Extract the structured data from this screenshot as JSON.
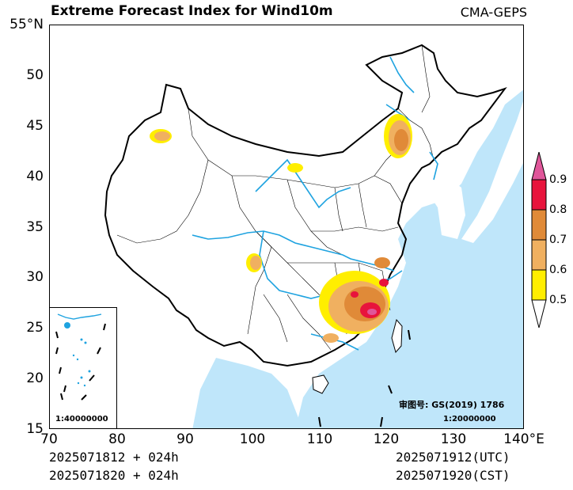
{
  "header": {
    "title": "Extreme Forecast Index for Wind10m",
    "source": "CMA-GEPS"
  },
  "axes": {
    "lat_ticks": [
      "55°N",
      "50",
      "45",
      "40",
      "35",
      "30",
      "25",
      "20",
      "15"
    ],
    "lon_ticks": [
      "70",
      "80",
      "90",
      "100",
      "110",
      "120",
      "130",
      "140°E"
    ],
    "lat_range": [
      15,
      55
    ],
    "lon_range": [
      70,
      140
    ]
  },
  "footer": {
    "init_utc": "2025071812 + 024h",
    "init_cst": "2025071820 + 024h",
    "valid_utc": "2025071912(UTC)",
    "valid_cst": "2025071920(CST)"
  },
  "annotations": {
    "approval_number": "审图号: GS(2019) 1786",
    "main_scale": "1:20000000",
    "inset_scale": "1:40000000"
  },
  "colorbar": {
    "labels": [
      "0.9",
      "0.8",
      "0.7",
      "0.6",
      "0.5"
    ],
    "colors": [
      "#e0569a",
      "#e8143c",
      "#e08a38",
      "#f0b060",
      "#ffee00",
      "#ffffff"
    ]
  },
  "colors": {
    "ocean": "#bfe6fa",
    "rivers": "#1fa3e0",
    "borders": "#000000"
  }
}
